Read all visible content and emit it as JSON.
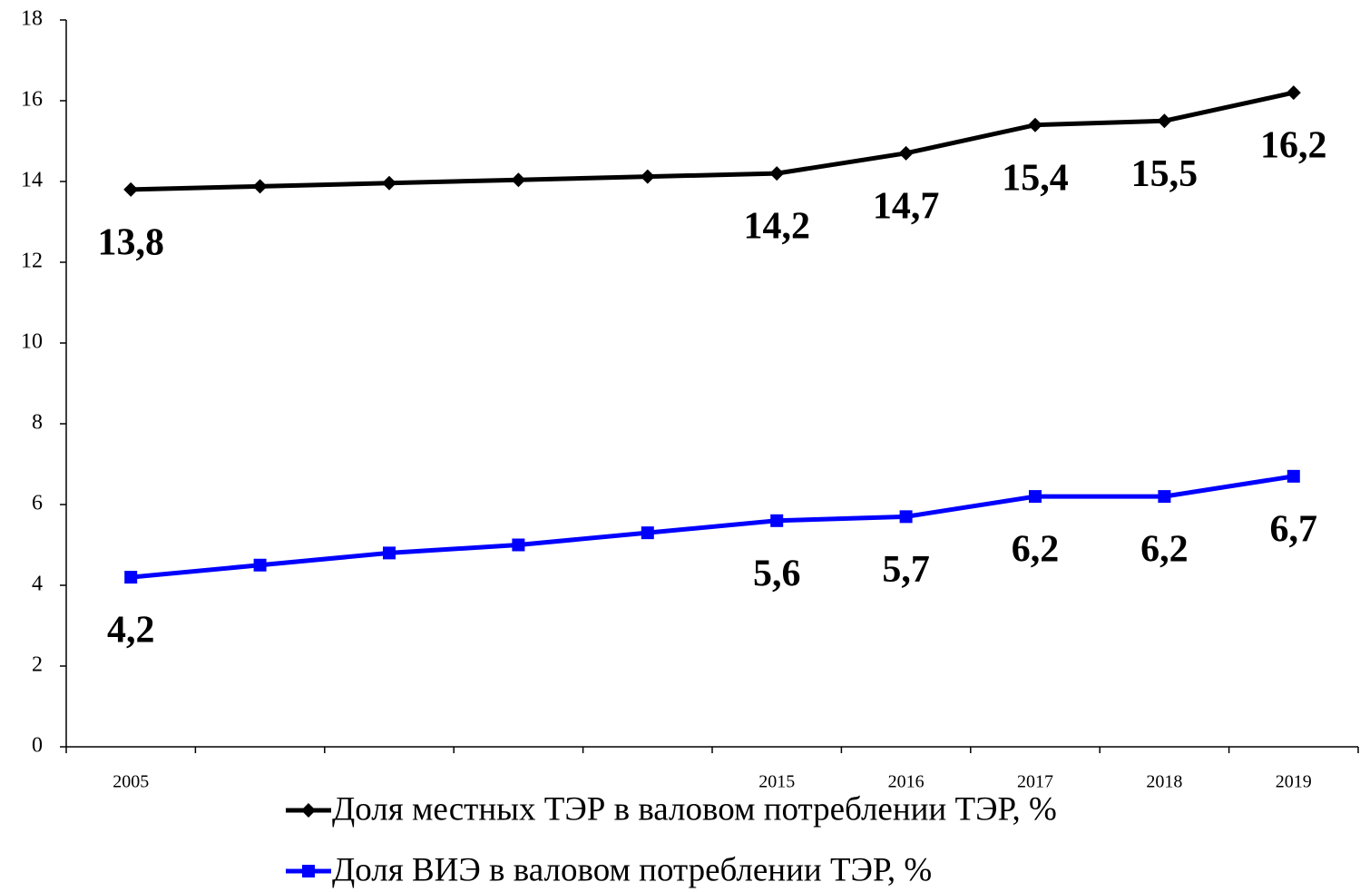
{
  "chart_data": {
    "type": "line",
    "categories": [
      "2005",
      null,
      null,
      null,
      null,
      "2015",
      "2016",
      "2017",
      "2018",
      "2019"
    ],
    "series": [
      {
        "name": "Доля местных ТЭР в валовом потреблении ТЭР, %",
        "color": "#000000",
        "marker": "diamond",
        "values": [
          13.8,
          13.88,
          13.96,
          14.04,
          14.12,
          14.2,
          14.7,
          15.4,
          15.5,
          16.2
        ],
        "value_labels": [
          "13,8",
          null,
          null,
          null,
          null,
          "14,2",
          "14,7",
          "15,4",
          "15,5",
          "16,2"
        ]
      },
      {
        "name": "Доля ВИЭ в валовом потреблении ТЭР, %",
        "color": "#0000ff",
        "marker": "square",
        "values": [
          4.2,
          4.5,
          4.8,
          5.0,
          5.3,
          5.6,
          5.7,
          6.2,
          6.2,
          6.7
        ],
        "value_labels": [
          "4,2",
          null,
          null,
          null,
          null,
          "5,6",
          "5,7",
          "6,2",
          "6,2",
          "6,7"
        ]
      }
    ],
    "ylim": [
      0,
      18
    ],
    "yticks": [
      0,
      2,
      4,
      6,
      8,
      10,
      12,
      14,
      16,
      18
    ],
    "grid": false,
    "legend": "bottom"
  }
}
